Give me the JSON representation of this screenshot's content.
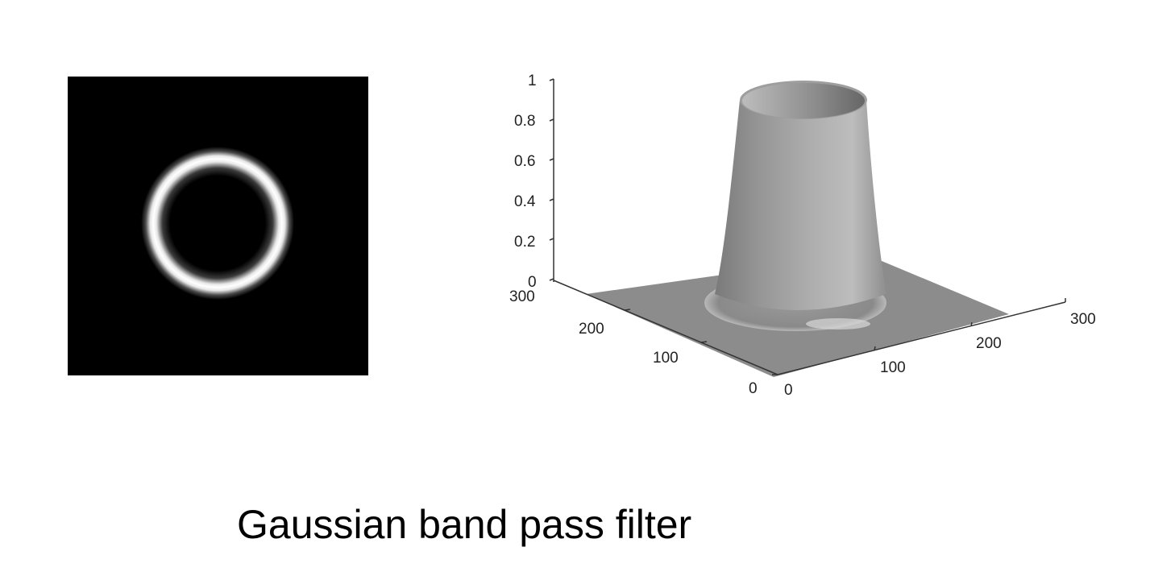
{
  "caption": "Gaussian band pass filter",
  "filter_image": {
    "description_icon": "ring-filter-image",
    "background_color": "#000000",
    "ring_color": "#ffffff"
  },
  "surface_plot": {
    "z_ticks": [
      "0",
      "0.2",
      "0.4",
      "0.6",
      "0.8",
      "1"
    ],
    "left_axis_ticks": [
      "300",
      "200",
      "100",
      "0"
    ],
    "right_axis_ticks": [
      "0",
      "100",
      "200",
      "300"
    ],
    "surface_color": "#9a9a9a",
    "z_range": [
      0,
      1
    ],
    "xy_range": [
      0,
      300
    ]
  }
}
